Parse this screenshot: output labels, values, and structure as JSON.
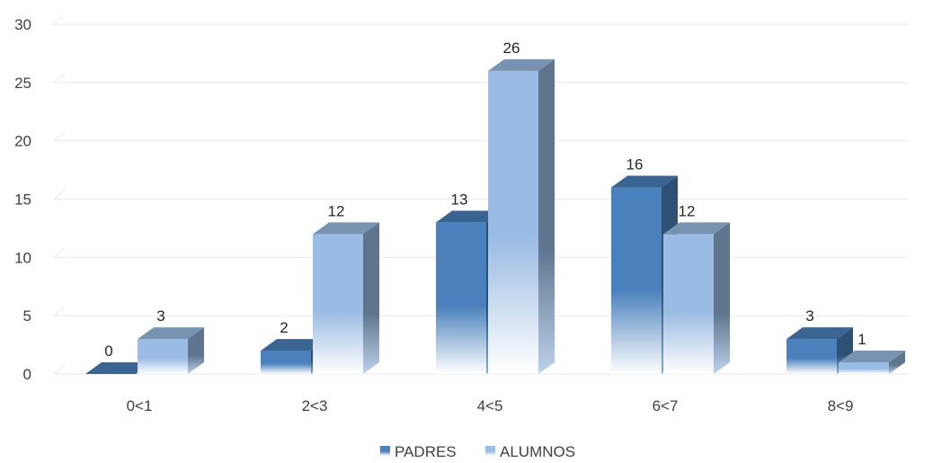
{
  "chart_data": {
    "type": "bar",
    "categories": [
      "0<1",
      "2<3",
      "4<5",
      "6<7",
      "8<9"
    ],
    "series": [
      {
        "name": "PADRES",
        "values": [
          0,
          2,
          13,
          16,
          3
        ],
        "color": "#4a81bd"
      },
      {
        "name": "ALUMNOS",
        "values": [
          3,
          12,
          26,
          12,
          1
        ],
        "color": "#9abbe3"
      }
    ],
    "ylim": [
      0,
      30
    ],
    "yticks": [
      0,
      5,
      10,
      15,
      20,
      25,
      30
    ],
    "grid": true,
    "legend_position": "bottom",
    "bar_style": "3d"
  }
}
